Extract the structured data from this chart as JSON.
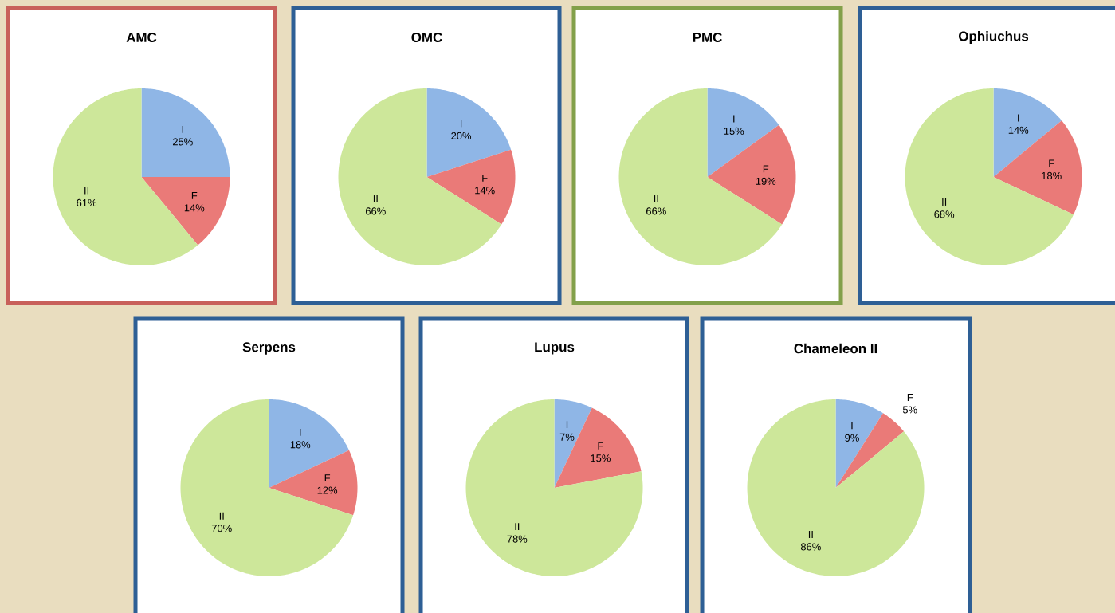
{
  "chart_data": [
    {
      "type": "pie",
      "title": "AMC",
      "categories": [
        "I",
        "F",
        "II"
      ],
      "values": [
        25,
        14,
        61
      ],
      "value_labels": [
        "25%",
        "14%",
        "61%"
      ],
      "colors": [
        "#8fb6e6",
        "#ea7a78",
        "#cde79a"
      ]
    },
    {
      "type": "pie",
      "title": "OMC",
      "categories": [
        "I",
        "F",
        "II"
      ],
      "values": [
        20,
        14,
        66
      ],
      "value_labels": [
        "20%",
        "14%",
        "66%"
      ],
      "colors": [
        "#8fb6e6",
        "#ea7a78",
        "#cde79a"
      ]
    },
    {
      "type": "pie",
      "title": "PMC",
      "categories": [
        "I",
        "F",
        "II"
      ],
      "values": [
        15,
        19,
        66
      ],
      "value_labels": [
        "15%",
        "19%",
        "66%"
      ],
      "colors": [
        "#8fb6e6",
        "#ea7a78",
        "#cde79a"
      ]
    },
    {
      "type": "pie",
      "title": "Ophiuchus",
      "categories": [
        "I",
        "F",
        "II"
      ],
      "values": [
        14,
        18,
        68
      ],
      "value_labels": [
        "14%",
        "18%",
        "68%"
      ],
      "colors": [
        "#8fb6e6",
        "#ea7a78",
        "#cde79a"
      ]
    },
    {
      "type": "pie",
      "title": "Serpens",
      "categories": [
        "I",
        "F",
        "II"
      ],
      "values": [
        18,
        12,
        70
      ],
      "value_labels": [
        "18%",
        "12%",
        "70%"
      ],
      "colors": [
        "#8fb6e6",
        "#ea7a78",
        "#cde79a"
      ]
    },
    {
      "type": "pie",
      "title": "Lupus",
      "categories": [
        "I",
        "F",
        "II"
      ],
      "values": [
        7,
        15,
        78
      ],
      "value_labels": [
        "7%",
        "15%",
        "78%"
      ],
      "colors": [
        "#8fb6e6",
        "#ea7a78",
        "#cde79a"
      ]
    },
    {
      "type": "pie",
      "title": "Chameleon II",
      "categories": [
        "I",
        "F",
        "II"
      ],
      "values": [
        9,
        5,
        86
      ],
      "value_labels": [
        "9%",
        "5%",
        "86%"
      ],
      "colors": [
        "#8fb6e6",
        "#ea7a78",
        "#cde79a"
      ]
    }
  ]
}
